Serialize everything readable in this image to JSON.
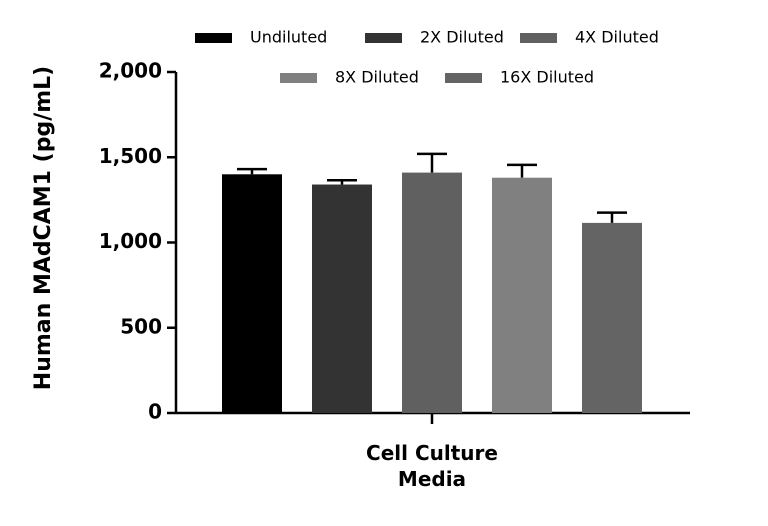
{
  "chart_data": {
    "type": "bar",
    "y_label": "Human MAdCAM1 (pg/mL)",
    "categories": [
      "Cell Culture Media"
    ],
    "series": [
      {
        "name": "Undiluted",
        "color": "#000000",
        "values": [
          1400
        ],
        "error": [
          30
        ]
      },
      {
        "name": "2X Diluted",
        "color": "#333333",
        "values": [
          1340
        ],
        "error": [
          25
        ]
      },
      {
        "name": "4X Diluted",
        "color": "#606060",
        "values": [
          1410
        ],
        "error": [
          110
        ]
      },
      {
        "name": "8X Diluted",
        "color": "#808080",
        "values": [
          1380
        ],
        "error": [
          75
        ]
      },
      {
        "name": "16X Diluted",
        "color": "#646464",
        "values": [
          1115
        ],
        "error": [
          60
        ]
      }
    ],
    "ylim": [
      0,
      2000
    ],
    "yticks": [
      0,
      500,
      {
        "value": 1000,
        "label": "1,000"
      },
      {
        "value": 1500,
        "label": "1,500"
      },
      {
        "value": 2000,
        "label": "2,000"
      }
    ]
  }
}
